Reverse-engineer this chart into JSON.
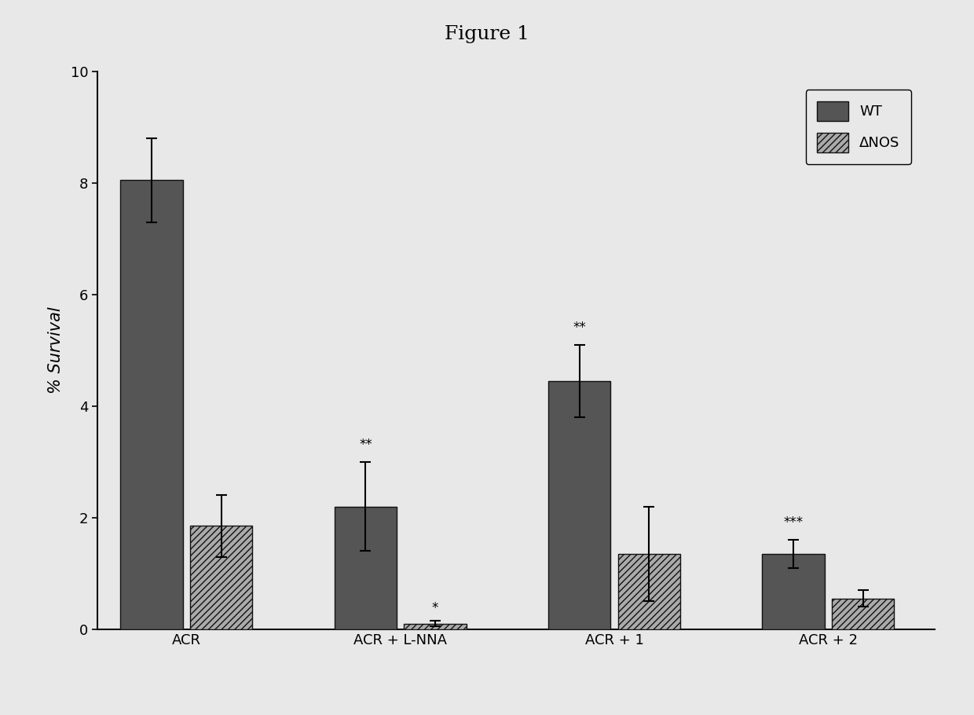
{
  "title": "Figure 1",
  "ylabel": "% Survival",
  "categories": [
    "ACR",
    "ACR + L-NNA",
    "ACR + 1",
    "ACR + 2"
  ],
  "wt_values": [
    8.05,
    2.2,
    4.45,
    1.35
  ],
  "wt_errors": [
    0.75,
    0.8,
    0.65,
    0.25
  ],
  "dnos_values": [
    1.85,
    0.1,
    1.35,
    0.55
  ],
  "dnos_errors": [
    0.55,
    0.05,
    0.85,
    0.15
  ],
  "ylim": [
    0,
    10
  ],
  "yticks": [
    0,
    2,
    4,
    6,
    8,
    10
  ],
  "bar_width": 0.35,
  "significance_wt": [
    "",
    "**",
    "**",
    "***"
  ],
  "significance_dnos": [
    "",
    "*",
    "",
    ""
  ],
  "legend_labels": [
    "WT",
    "ΔNOS"
  ],
  "figure_bg": "#e8e8e8",
  "axes_bg": "#e8e8e8",
  "wt_color": "#555555",
  "dnos_facecolor": "#aaaaaa",
  "edge_color": "#111111"
}
